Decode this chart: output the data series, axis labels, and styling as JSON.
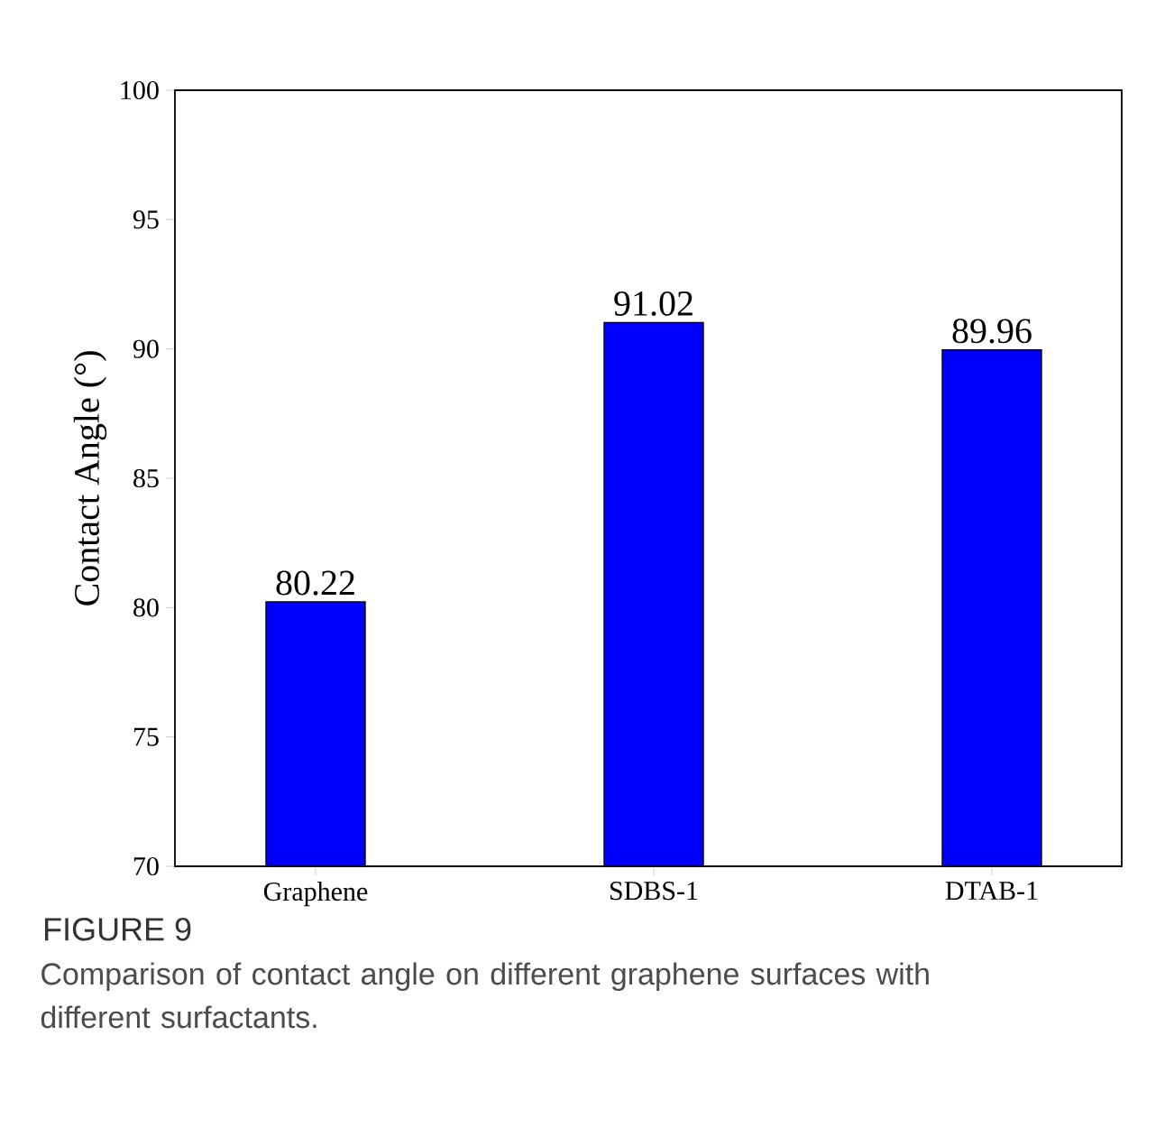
{
  "chart_data": {
    "type": "bar",
    "ylabel": "Contact Angle (°)",
    "categories": [
      "Graphene",
      "SDBS-1",
      "DTAB-1"
    ],
    "values": [
      80.22,
      91.02,
      89.96
    ],
    "color": "#0000ff",
    "ylim": [
      70,
      100
    ],
    "yticks": [
      70,
      75,
      80,
      85,
      90,
      95,
      100
    ],
    "data_labels": true,
    "annotations": [
      "FIGURE 9",
      "Comparison of contact angle on different graphene surfaces with different surfactants."
    ]
  }
}
